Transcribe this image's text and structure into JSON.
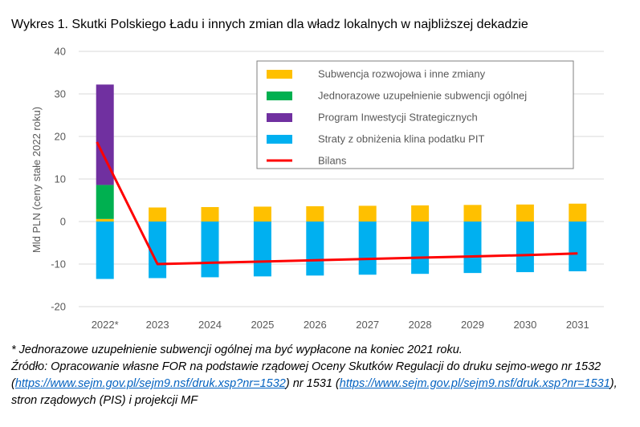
{
  "title": "Wykres 1. Skutki Polskiego Ładu i innych zmian dla władz lokalnych w najbliższej dekadzie",
  "chart_data": {
    "type": "bar",
    "stacked": true,
    "categories": [
      "2022*",
      "2023",
      "2024",
      "2025",
      "2026",
      "2027",
      "2028",
      "2029",
      "2030",
      "2031"
    ],
    "ylabel": "Mld PLN (ceny stałe 2022 roku)",
    "ylim": [
      -20,
      40
    ],
    "yticks": [
      -20,
      -10,
      0,
      10,
      20,
      30,
      40
    ],
    "grid": true,
    "legend_placement": "top-right",
    "series": [
      {
        "name": "Subwencja rozwojowa i inne zmiany",
        "kind": "bar",
        "color": "#ffc000",
        "values": [
          0.6,
          3.3,
          3.4,
          3.5,
          3.6,
          3.7,
          3.8,
          3.9,
          4.0,
          4.2
        ]
      },
      {
        "name": "Jednorazowe uzupełnienie subwencji ogólnej",
        "kind": "bar",
        "color": "#00b050",
        "values": [
          8.0,
          0,
          0,
          0,
          0,
          0,
          0,
          0,
          0,
          0
        ]
      },
      {
        "name": "Program Inwestycji Strategicznych",
        "kind": "bar",
        "color": "#7030a0",
        "values": [
          23.6,
          0,
          0,
          0,
          0,
          0,
          0,
          0,
          0,
          0
        ]
      },
      {
        "name": "Straty z obniżenia klina podatku PIT",
        "kind": "bar",
        "color": "#00b0f0",
        "values": [
          -13.5,
          -13.3,
          -13.1,
          -12.9,
          -12.7,
          -12.5,
          -12.3,
          -12.1,
          -11.9,
          -11.7
        ]
      },
      {
        "name": "Bilans",
        "kind": "line",
        "color": "#ff0000",
        "values": [
          18.7,
          -10.0,
          -9.7,
          -9.4,
          -9.1,
          -8.8,
          -8.5,
          -8.2,
          -7.9,
          -7.5
        ]
      }
    ]
  },
  "notes": {
    "footnote": "* Jednorazowe uzupełnienie subwencji ogólnej ma być wypłacone na koniec 2021 roku.",
    "source_prefix": "Źródło: Opracowanie własne FOR na podstawie rządowej Oceny Skutków Regulacji do druku sejmo-wego nr 1532 (",
    "link1": "https://www.sejm.gov.pl/sejm9.nsf/druk.xsp?nr=1532",
    "source_middle": ") nr 1531 (",
    "link2": "https://www.sejm.gov.pl/sejm9.nsf/druk.xsp?nr=1531",
    "source_suffix": "), stron rządowych (PIS) i projekcji MF"
  }
}
